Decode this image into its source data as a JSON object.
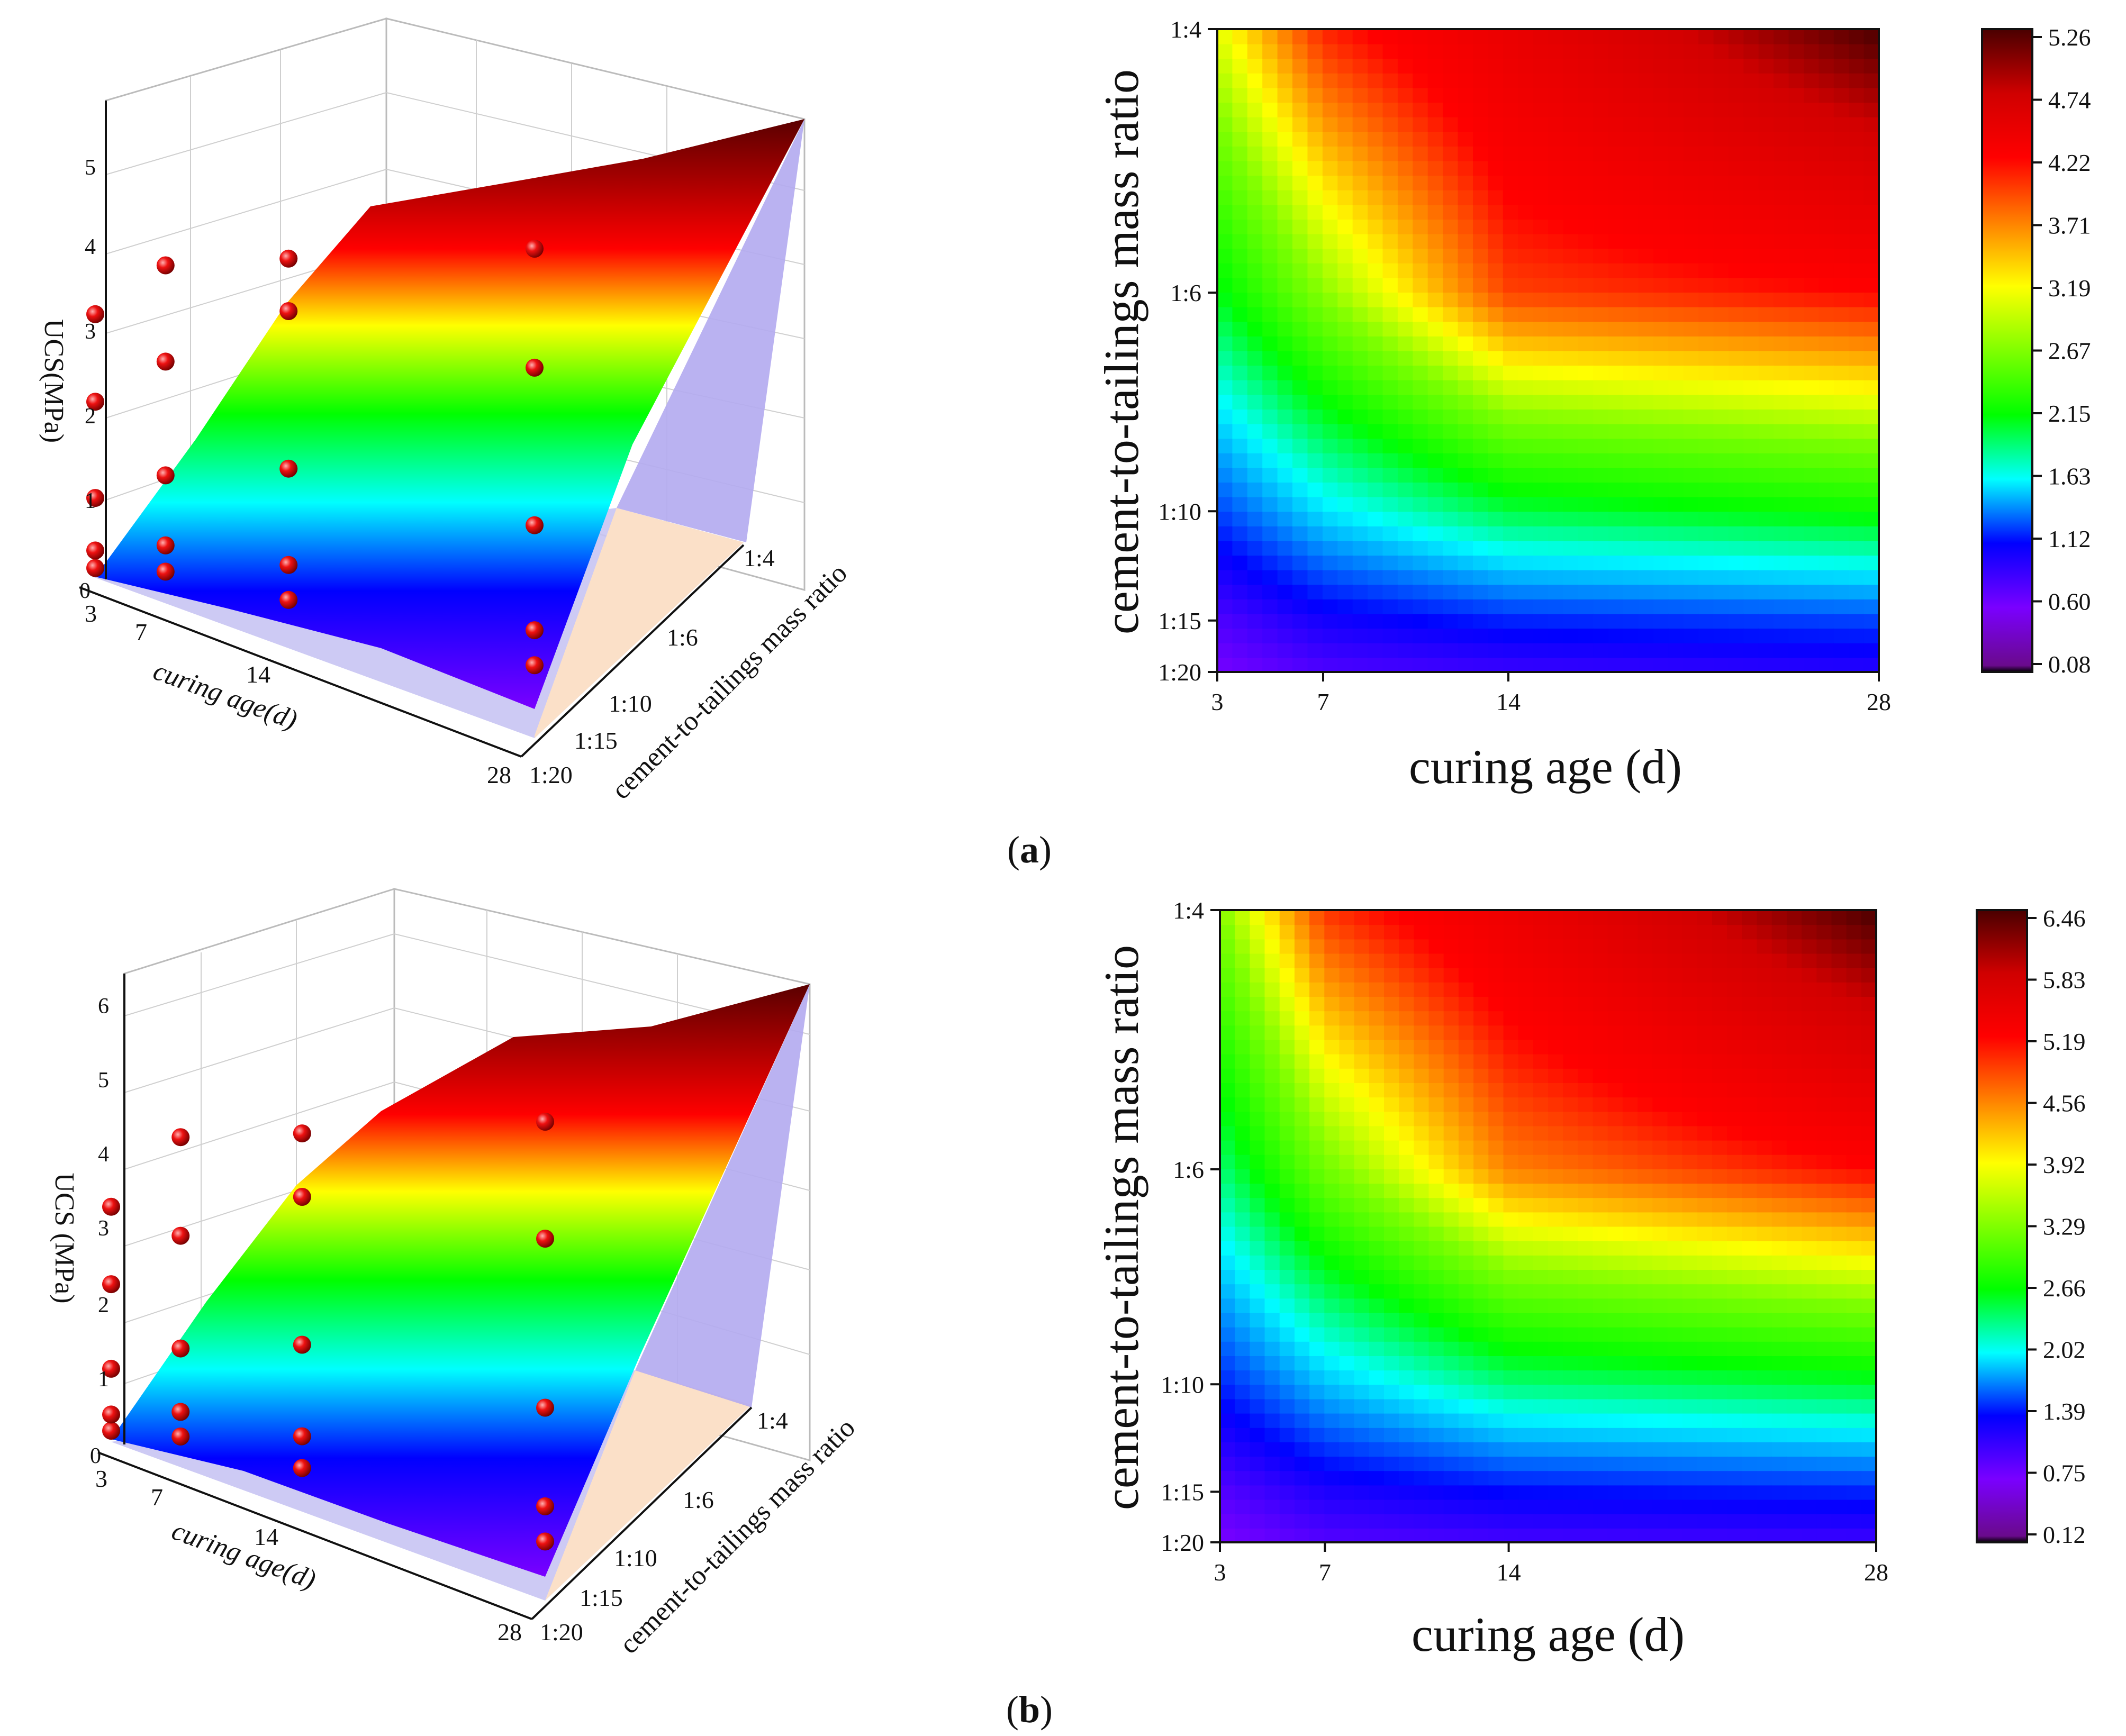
{
  "panels": [
    {
      "label_open": "(",
      "label_letter": "a",
      "label_close": ")",
      "colorbar_ticks": [
        "0.08",
        "0.60",
        "1.12",
        "1.63",
        "2.15",
        "2.67",
        "3.19",
        "3.71",
        "4.22",
        "4.74",
        "5.26"
      ],
      "contour_xlabel": "curing age (d)",
      "contour_ylabel": "cement-to-tailings mass ratio",
      "x_ticks": [
        "3",
        "7",
        "14",
        "28"
      ],
      "y_ticks": [
        "1:20",
        "1:15",
        "1:10",
        "1:6",
        "1:4"
      ],
      "surface_zlabel": "UCS(MPa)",
      "surface_xlabel": "curing age(d)",
      "surface_ylabel": "cement-to-tailings mass ratio",
      "surface_z_ticks": [
        "0",
        "1",
        "2",
        "3",
        "4",
        "5"
      ]
    },
    {
      "label_open": "(",
      "label_letter": "b",
      "label_close": ")",
      "colorbar_ticks": [
        "0.12",
        "0.75",
        "1.39",
        "2.02",
        "2.66",
        "3.29",
        "3.92",
        "4.56",
        "5.19",
        "5.83",
        "6.46"
      ],
      "contour_xlabel": "curing age (d)",
      "contour_ylabel": "cement-to-tailings mass ratio",
      "x_ticks": [
        "3",
        "7",
        "14",
        "28"
      ],
      "y_ticks": [
        "1:20",
        "1:15",
        "1:10",
        "1:6",
        "1:4"
      ],
      "surface_zlabel": "UCS (MPa)",
      "surface_xlabel": "curing age(d)",
      "surface_ylabel": "cement-to-tailings mass ratio",
      "surface_z_ticks": [
        "0",
        "1",
        "2",
        "3",
        "4",
        "5",
        "6"
      ]
    }
  ],
  "chart_data": [
    {
      "type": "heatmap",
      "title": "",
      "xlabel": "curing age (d)",
      "ylabel": "cement-to-tailings mass ratio",
      "x": [
        3,
        7,
        14,
        28
      ],
      "y": [
        "1:20",
        "1:15",
        "1:10",
        "1:6",
        "1:4"
      ],
      "z": [
        [
          0.1,
          0.3,
          0.4,
          0.5
        ],
        [
          0.3,
          0.6,
          0.8,
          0.9
        ],
        [
          0.9,
          1.4,
          1.9,
          2.1
        ],
        [
          2.0,
          2.7,
          3.7,
          3.9
        ],
        [
          3.0,
          3.8,
          4.3,
          5.26
        ]
      ],
      "colorbar_range": [
        0.08,
        5.26
      ]
    },
    {
      "type": "heatmap",
      "title": "",
      "xlabel": "curing age (d)",
      "ylabel": "cement-to-tailings mass ratio",
      "x": [
        3,
        7,
        14,
        28
      ],
      "y": [
        "1:20",
        "1:15",
        "1:10",
        "1:6",
        "1:4"
      ],
      "z": [
        [
          0.12,
          0.35,
          0.45,
          0.5
        ],
        [
          0.35,
          0.7,
          0.9,
          1.0
        ],
        [
          1.0,
          1.6,
          2.2,
          2.4
        ],
        [
          2.2,
          3.2,
          4.3,
          4.8
        ],
        [
          3.3,
          4.6,
          5.2,
          6.46
        ]
      ],
      "colorbar_range": [
        0.12,
        6.46
      ]
    }
  ]
}
